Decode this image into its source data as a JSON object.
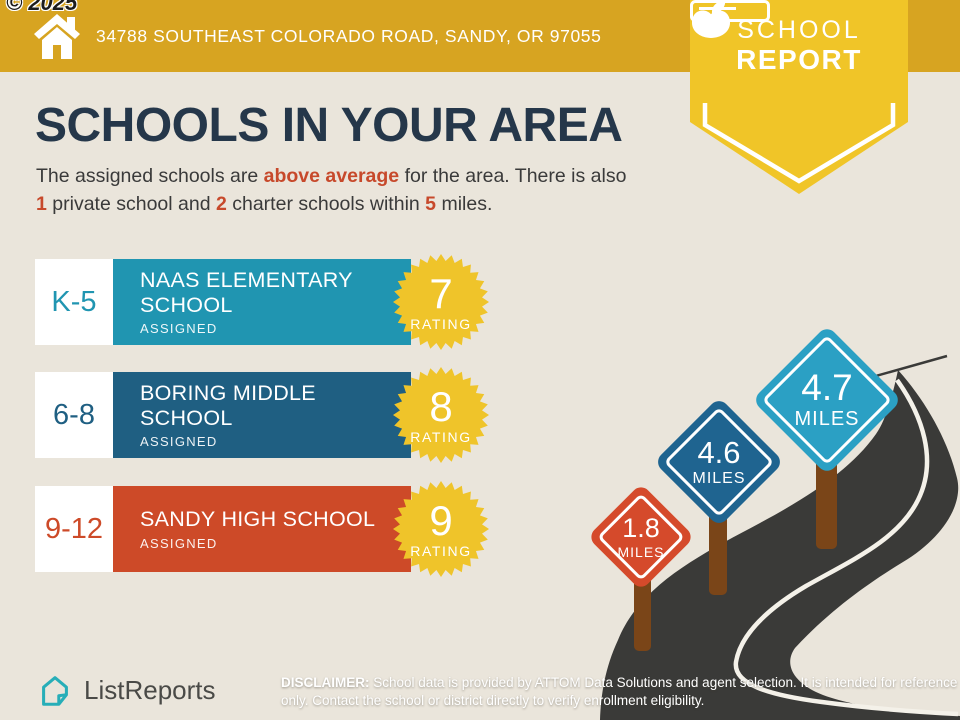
{
  "watermark": "© 2025",
  "header": {
    "address": "34788 SOUTHEAST COLORADO ROAD, SANDY, OR 97055"
  },
  "badge": {
    "line1": "SCHOOL",
    "line2": "REPORT"
  },
  "main": {
    "title": "SCHOOLS IN YOUR AREA",
    "subtitle_segments": [
      {
        "t": "The assigned schools are ",
        "hl": false
      },
      {
        "t": "above average",
        "hl": true
      },
      {
        "t": " for the area. There is also ",
        "hl": false
      },
      {
        "t": "1",
        "hl": true
      },
      {
        "t": " private school and ",
        "hl": false
      },
      {
        "t": "2",
        "hl": true
      },
      {
        "t": " charter schools within ",
        "hl": false
      },
      {
        "t": "5",
        "hl": true
      },
      {
        "t": " miles.",
        "hl": false
      }
    ]
  },
  "schools": [
    {
      "grade": "K-5",
      "name": "NAAS ELEMENTARY SCHOOL",
      "status": "ASSIGNED",
      "rating": "7",
      "rating_label": "RATING",
      "color": "#2095B1"
    },
    {
      "grade": "6-8",
      "name": "BORING MIDDLE SCHOOL",
      "status": "ASSIGNED",
      "rating": "8",
      "rating_label": "RATING",
      "color": "#1F5F82"
    },
    {
      "grade": "9-12",
      "name": "SANDY HIGH SCHOOL",
      "status": "ASSIGNED",
      "rating": "9",
      "rating_label": "RATING",
      "color": "#CD4A28"
    }
  ],
  "signs": [
    {
      "value": "1.8",
      "unit": "MILES",
      "color": "#D54A2B"
    },
    {
      "value": "4.6",
      "unit": "MILES",
      "color": "#1F6490"
    },
    {
      "value": "4.7",
      "unit": "MILES",
      "color": "#2BA0C4"
    }
  ],
  "footer": {
    "brand": "ListReports",
    "disclaimer_prefix": "DISCLAIMER:",
    "disclaimer_text": " School data is provided by ATTOM Data Solutions and agent selection. It is intended for reference only. Contact the school or district directly to verify enrollment eligibility."
  },
  "colors": {
    "header_gold": "#D7A421",
    "pennant_gold": "#F0C528",
    "badge_gold": "#EFC42A",
    "background": "#EAE5DB",
    "title_navy": "#25374A",
    "highlight_orange": "#C7492B",
    "road": "#3A3A38",
    "post_brown": "#7A4518",
    "brand_teal": "#27AEB8"
  }
}
